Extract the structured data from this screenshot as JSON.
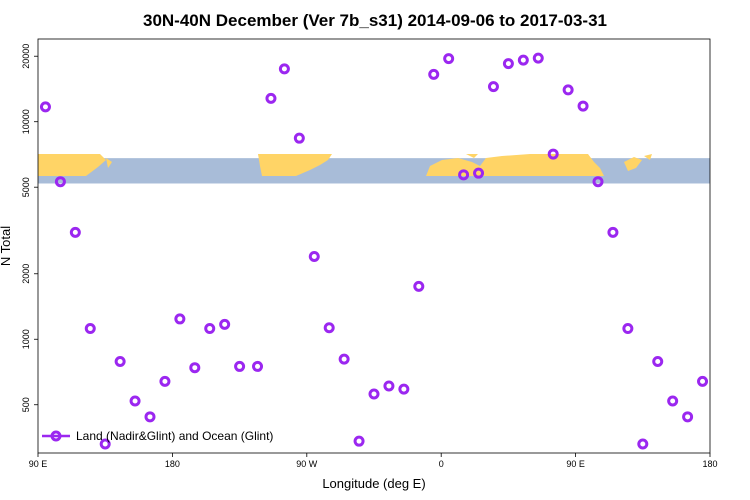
{
  "chart_data": {
    "type": "scatter",
    "title": "30N-40N December (Ver 7b_s31)   2014-09-06 to 2017-03-31",
    "xlabel": "Longitude (deg E)",
    "ylabel": "N Total",
    "xlim": [
      90,
      540
    ],
    "ylim": [
      300,
      24000
    ],
    "yscale": "log",
    "x_ticks": [
      {
        "value": 90,
        "label": "90 E"
      },
      {
        "value": 180,
        "label": "180"
      },
      {
        "value": 270,
        "label": "90 W"
      },
      {
        "value": 360,
        "label": "0"
      },
      {
        "value": 450,
        "label": "90 E"
      },
      {
        "value": 540,
        "label": "180"
      }
    ],
    "y_ticks": [
      {
        "value": 500,
        "label": "500"
      },
      {
        "value": 1000,
        "label": "1000"
      },
      {
        "value": 2000,
        "label": "2000"
      },
      {
        "value": 5000,
        "label": "5000"
      },
      {
        "value": 10000,
        "label": "10000"
      },
      {
        "value": 20000,
        "label": "20000"
      }
    ],
    "map_band": {
      "ylim": [
        5200,
        6800
      ],
      "ocean_color": "#a8bcd8",
      "land_color": "#ffd466"
    },
    "legend": {
      "label": "Land (Nadir&Glint) and Ocean (Glint)",
      "position": "bottom-left"
    },
    "series": [
      {
        "name": "Land (Nadir&Glint) and Ocean (Glint)",
        "color": "#9b27f0",
        "x": [
          95,
          105,
          115,
          125,
          135,
          145,
          155,
          165,
          175,
          185,
          195,
          205,
          215,
          225,
          237,
          246,
          255,
          265,
          275,
          285,
          295,
          305,
          315,
          325,
          335,
          345,
          355,
          365,
          375,
          385,
          395,
          405,
          415,
          425,
          435,
          445,
          455,
          465,
          475,
          485,
          495,
          505,
          515,
          525,
          535
        ],
        "y": [
          11700,
          5300,
          3100,
          1120,
          330,
          790,
          520,
          440,
          640,
          1240,
          740,
          1120,
          1170,
          750,
          750,
          12800,
          17500,
          8400,
          2400,
          1130,
          810,
          340,
          560,
          610,
          590,
          1750,
          16500,
          19500,
          5700,
          5800,
          14500,
          18500,
          19200,
          19600,
          7100,
          14000,
          11800,
          5300,
          3100,
          1120,
          330,
          790,
          520,
          440,
          640
        ]
      }
    ]
  }
}
